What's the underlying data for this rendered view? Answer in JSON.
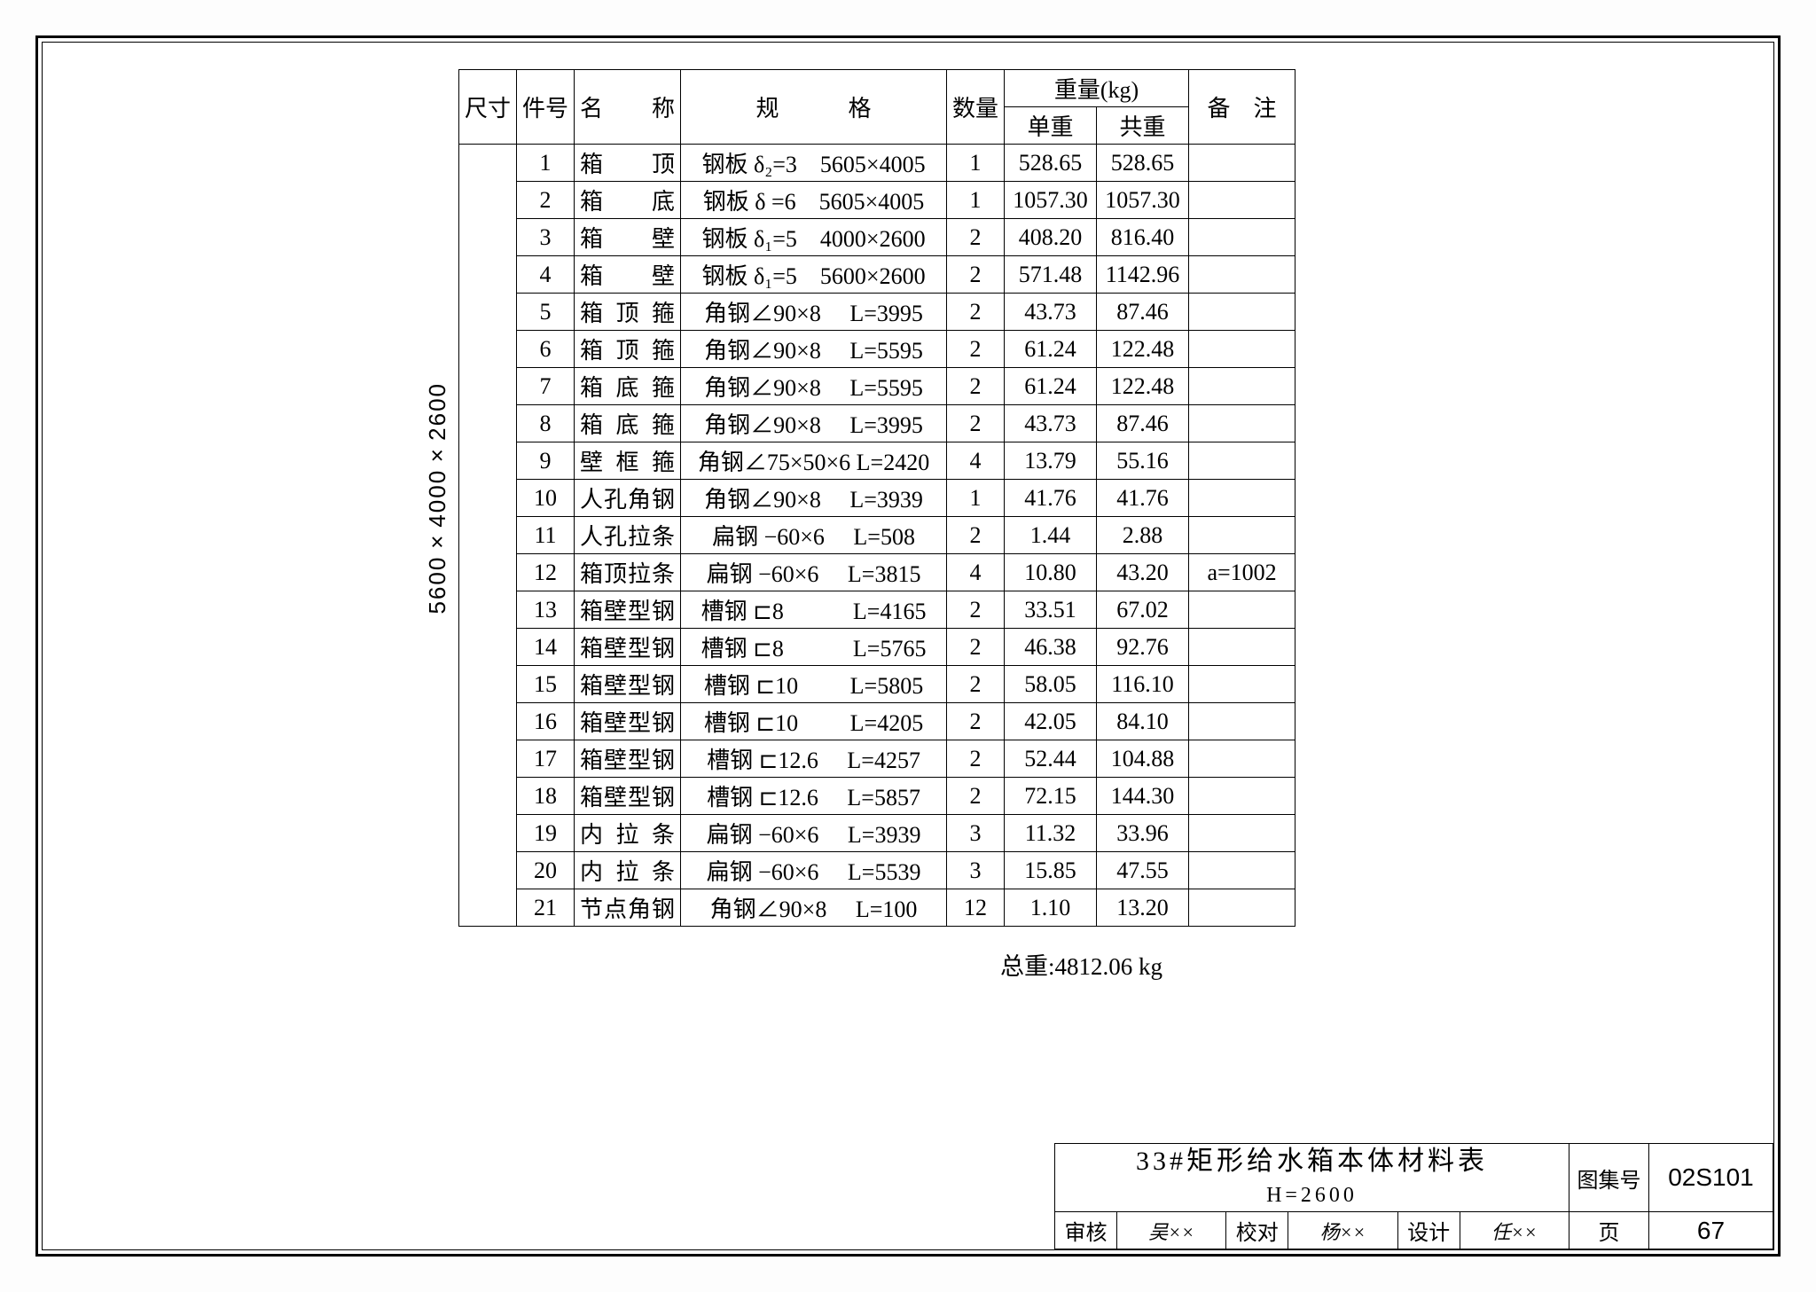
{
  "frame": {
    "border_color": "#000000",
    "background": "#ffffff"
  },
  "dimension_label": "5600×4000×2600",
  "header": {
    "size": "尺寸",
    "partno": "件号",
    "name": "名　称",
    "spec": "规　　　格",
    "qty": "数量",
    "weight": "重量(kg)",
    "unit_w": "单重",
    "total_w": "共重",
    "note": "备　注"
  },
  "rows": [
    {
      "no": "1",
      "name": "箱　顶",
      "spec": "钢板 δ₂=3　5605×4005",
      "qty": "1",
      "uw": "528.65",
      "tw": "528.65",
      "note": ""
    },
    {
      "no": "2",
      "name": "箱　底",
      "spec": "钢板 δ =6　5605×4005",
      "qty": "1",
      "uw": "1057.30",
      "tw": "1057.30",
      "note": ""
    },
    {
      "no": "3",
      "name": "箱　壁",
      "spec": "钢板 δ₁=5　4000×2600",
      "qty": "2",
      "uw": "408.20",
      "tw": "816.40",
      "note": ""
    },
    {
      "no": "4",
      "name": "箱　壁",
      "spec": "钢板 δ₁=5　5600×2600",
      "qty": "2",
      "uw": "571.48",
      "tw": "1142.96",
      "note": ""
    },
    {
      "no": "5",
      "name": "箱顶箍",
      "spec": "角钢∠90×8　 L=3995",
      "qty": "2",
      "uw": "43.73",
      "tw": "87.46",
      "note": ""
    },
    {
      "no": "6",
      "name": "箱顶箍",
      "spec": "角钢∠90×8　 L=5595",
      "qty": "2",
      "uw": "61.24",
      "tw": "122.48",
      "note": ""
    },
    {
      "no": "7",
      "name": "箱底箍",
      "spec": "角钢∠90×8　 L=5595",
      "qty": "2",
      "uw": "61.24",
      "tw": "122.48",
      "note": ""
    },
    {
      "no": "8",
      "name": "箱底箍",
      "spec": "角钢∠90×8　 L=3995",
      "qty": "2",
      "uw": "43.73",
      "tw": "87.46",
      "note": ""
    },
    {
      "no": "9",
      "name": "壁框箍",
      "spec": "角钢∠75×50×6 L=2420",
      "qty": "4",
      "uw": "13.79",
      "tw": "55.16",
      "note": ""
    },
    {
      "no": "10",
      "name": "人孔角钢",
      "spec": "角钢∠90×8　 L=3939",
      "qty": "1",
      "uw": "41.76",
      "tw": "41.76",
      "note": ""
    },
    {
      "no": "11",
      "name": "人孔拉条",
      "spec": "扁钢 −60×6　 L=508",
      "qty": "2",
      "uw": "1.44",
      "tw": "2.88",
      "note": ""
    },
    {
      "no": "12",
      "name": "箱顶拉条",
      "spec": "扁钢 −60×6　 L=3815",
      "qty": "4",
      "uw": "10.80",
      "tw": "43.20",
      "note": "a=1002"
    },
    {
      "no": "13",
      "name": "箱壁型钢",
      "spec": "槽钢 ⊏8　　　L=4165",
      "qty": "2",
      "uw": "33.51",
      "tw": "67.02",
      "note": ""
    },
    {
      "no": "14",
      "name": "箱壁型钢",
      "spec": "槽钢 ⊏8　　　L=5765",
      "qty": "2",
      "uw": "46.38",
      "tw": "92.76",
      "note": ""
    },
    {
      "no": "15",
      "name": "箱壁型钢",
      "spec": "槽钢 ⊏10　　 L=5805",
      "qty": "2",
      "uw": "58.05",
      "tw": "116.10",
      "note": ""
    },
    {
      "no": "16",
      "name": "箱壁型钢",
      "spec": "槽钢 ⊏10　　 L=4205",
      "qty": "2",
      "uw": "42.05",
      "tw": "84.10",
      "note": ""
    },
    {
      "no": "17",
      "name": "箱壁型钢",
      "spec": "槽钢 ⊏12.6　 L=4257",
      "qty": "2",
      "uw": "52.44",
      "tw": "104.88",
      "note": ""
    },
    {
      "no": "18",
      "name": "箱壁型钢",
      "spec": "槽钢 ⊏12.6　 L=5857",
      "qty": "2",
      "uw": "72.15",
      "tw": "144.30",
      "note": ""
    },
    {
      "no": "19",
      "name": "内拉条",
      "spec": "扁钢 −60×6　 L=3939",
      "qty": "3",
      "uw": "11.32",
      "tw": "33.96",
      "note": ""
    },
    {
      "no": "20",
      "name": "内拉条",
      "spec": "扁钢 −60×6　 L=5539",
      "qty": "3",
      "uw": "15.85",
      "tw": "47.55",
      "note": ""
    },
    {
      "no": "21",
      "name": "节点角钢",
      "spec": "角钢∠90×8　 L=100",
      "qty": "12",
      "uw": "1.10",
      "tw": "13.20",
      "note": ""
    }
  ],
  "total": "总重:4812.06 kg",
  "title_block": {
    "title_line1": "33#矩形给水箱本体材料表",
    "title_line2": "H=2600",
    "review_lbl": "审核",
    "review_sig": "吴××",
    "check_lbl": "校对",
    "check_sig": "杨××",
    "design_lbl": "设计",
    "design_sig": "任××",
    "catalog_lbl": "图集号",
    "catalog": "02S101",
    "page_lbl": "页",
    "page": "67"
  }
}
